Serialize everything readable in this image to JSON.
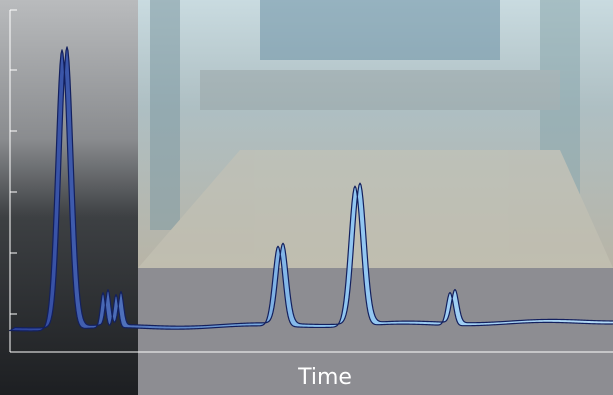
{
  "axis": {
    "x_label": "Time"
  }
}
